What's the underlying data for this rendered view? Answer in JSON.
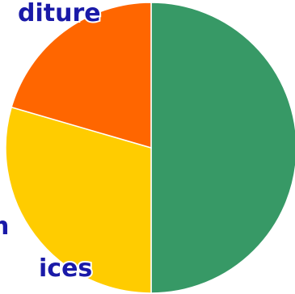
{
  "chart_data": {
    "type": "pie",
    "slices": [
      {
        "value": 50.0,
        "color": "#379966"
      },
      {
        "value": 29.5,
        "color": "#ffcc00"
      },
      {
        "value": 20.5,
        "color": "#ff6600"
      }
    ],
    "start_angle_deg": 0,
    "direction": "clockwise"
  },
  "labels": {
    "top_fragment": "diture",
    "bottom_fragment_1": "n",
    "bottom_fragment_2": "ices"
  }
}
